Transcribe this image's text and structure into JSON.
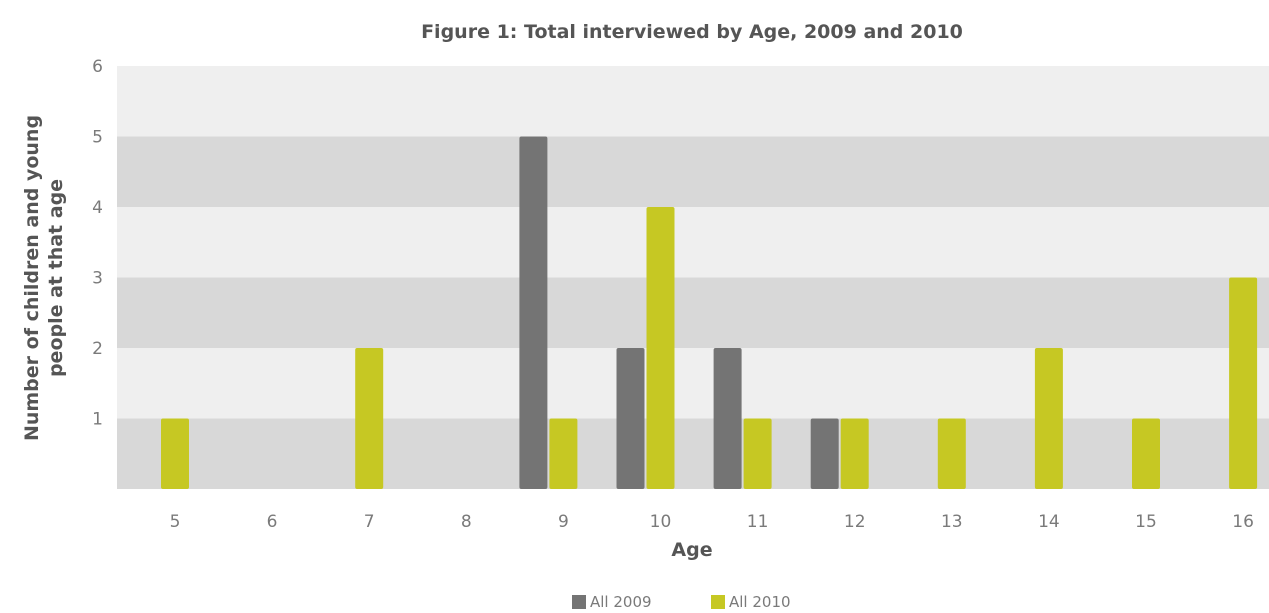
{
  "chart_data": {
    "type": "bar",
    "title": "Figure 1: Total interviewed by Age, 2009 and 2010",
    "xlabel": "Age",
    "ylabel_lines": [
      "Number of children and young",
      "people at that age"
    ],
    "categories": [
      "5",
      "6",
      "7",
      "8",
      "9",
      "10",
      "11",
      "12",
      "13",
      "14",
      "15",
      "16"
    ],
    "ylim": [
      0,
      6
    ],
    "yticks": [
      1,
      2,
      3,
      4,
      5,
      6
    ],
    "series": [
      {
        "name": "All 2009",
        "color": "#747474",
        "values": [
          0,
          0,
          0,
          0,
          5,
          2,
          2,
          1,
          0,
          0,
          0,
          0
        ]
      },
      {
        "name": "All 2010",
        "color": "#c6c823",
        "values": [
          1,
          0,
          2,
          0,
          1,
          4,
          1,
          1,
          1,
          2,
          1,
          3
        ]
      }
    ],
    "band_colors": [
      "#d8d8d8",
      "#efefef"
    ],
    "grid": false,
    "legend_position": "bottom-center"
  }
}
